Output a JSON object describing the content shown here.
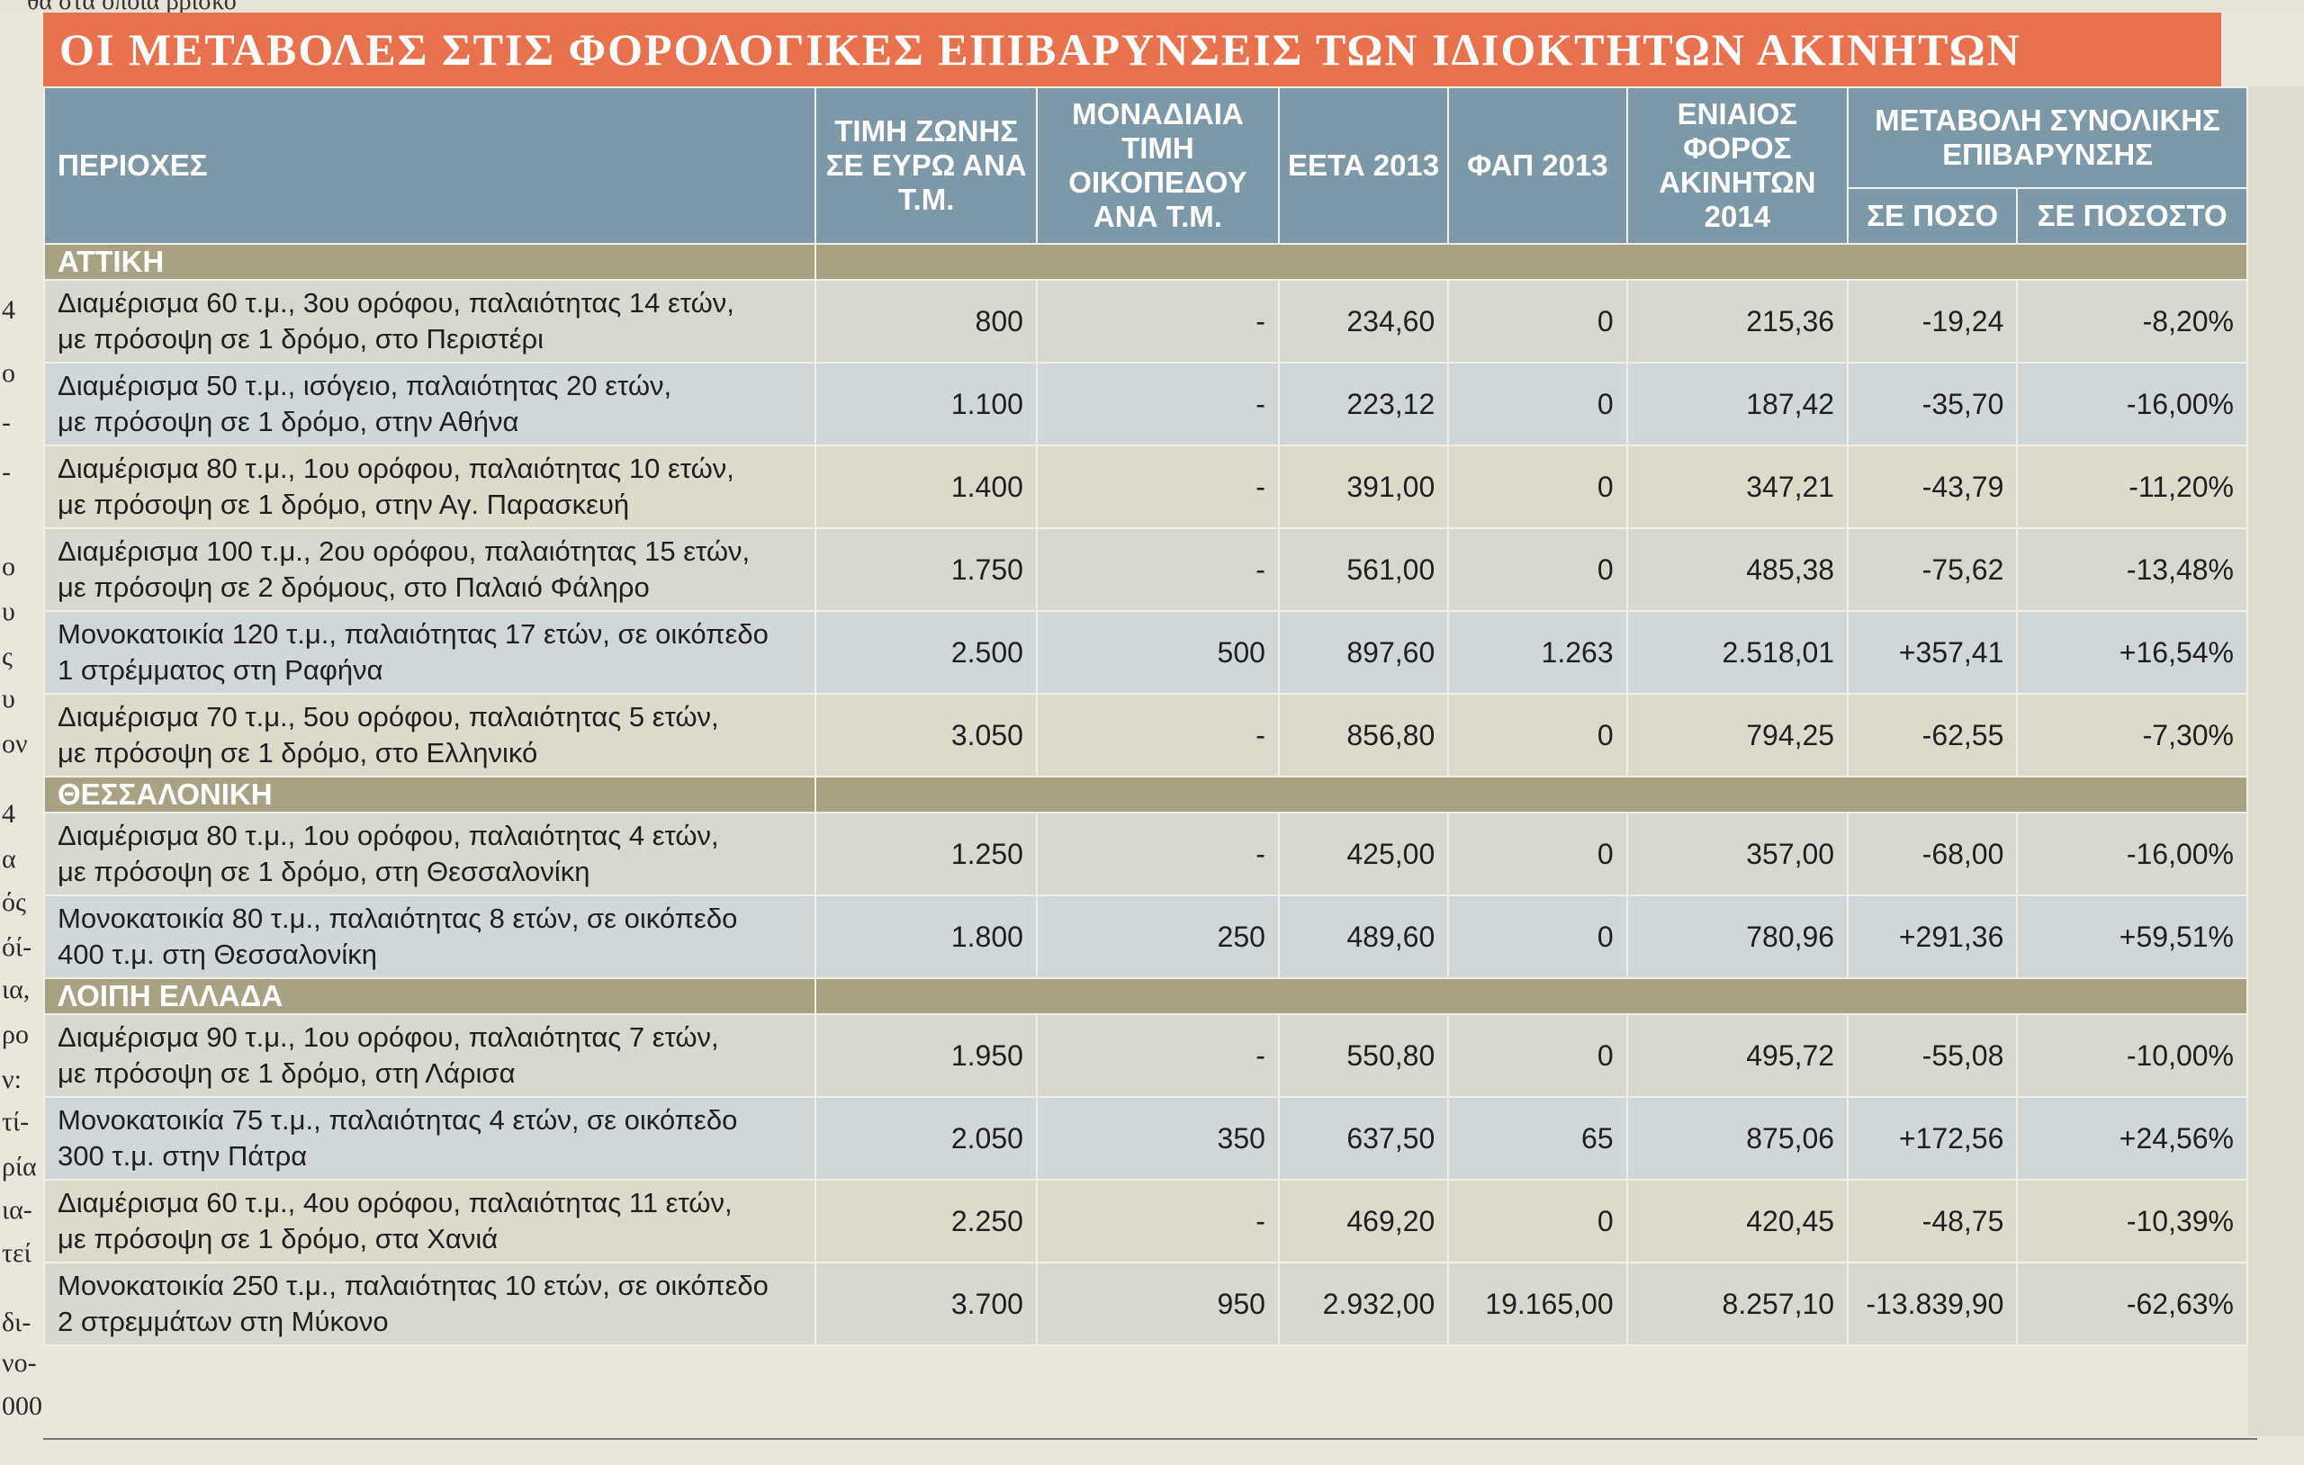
{
  "top_text": "θα στα οποία βρίσκο",
  "left_column_fragments": [
    "4",
    "ο",
    "-",
    "-",
    "ο",
    "υ",
    "ς",
    "υ",
    "ον",
    "4",
    "α",
    "ός",
    "όί-",
    "ια,",
    "ρο",
    "ν:",
    "τί-",
    "ρία",
    "ια-",
    "τεί",
    "δι-",
    "νο-",
    "000"
  ],
  "title": "ΟΙ ΜΕΤΑΒΟΛΕΣ ΣΤΙΣ ΦΟΡΟΛΟΓΙΚΕΣ ΕΠΙΒΑΡΥΝΣΕΙΣ ΤΩΝ ΙΔΙΟΚΤΗΤΩΝ ΑΚΙΝΗΤΩΝ",
  "columns": {
    "area": "ΠΕΡΙΟΧΕΣ",
    "zone_price": "ΤΙΜΗ ΖΩΝΗΣ ΣΕ ΕΥΡΩ ΑΝΑ Τ.Μ.",
    "unit_price": "ΜΟΝΑΔΙΑΙΑ ΤΙΜΗ ΟΙΚΟΠΕΔΟΥ ΑΝΑ Τ.Μ.",
    "eeta": "ΕΕΤΑ 2013",
    "fap": "ΦΑΠ 2013",
    "enfia": "ΕΝΙΑΙΟΣ ΦΟΡΟΣ ΑΚΙΝΗΤΩΝ 2014",
    "change_group": "ΜΕΤΑΒΟΛΗ ΣΥΝΟΛΙΚΗΣ ΕΠΙΒΑΡΥΝΣΗΣ",
    "change_amount": "ΣΕ ΠΟΣΟ",
    "change_percent": "ΣΕ ΠΟΣΟΣΤΟ"
  },
  "sections": [
    {
      "name": "ΑΤΤΙΚΗ",
      "rows": [
        {
          "desc1": "Διαμέρισμα 60 τ.μ., 3ου ορόφου, παλαιότητας 14 ετών,",
          "desc2": "με πρόσοψη σε 1 δρόμο, στο Περιστέρι",
          "zone": "800",
          "unit": "-",
          "eeta": "234,60",
          "fap": "0",
          "enfia": "215,36",
          "amount": "-19,24",
          "percent": "-8,20%"
        },
        {
          "desc1": "Διαμέρισμα 50 τ.μ., ισόγειο, παλαιότητας 20 ετών,",
          "desc2": "με πρόσοψη σε 1 δρόμο, στην Αθήνα",
          "zone": "1.100",
          "unit": "-",
          "eeta": "223,12",
          "fap": "0",
          "enfia": "187,42",
          "amount": "-35,70",
          "percent": "-16,00%"
        },
        {
          "desc1": "Διαμέρισμα 80 τ.μ., 1ου ορόφου, παλαιότητας 10 ετών,",
          "desc2": "με πρόσοψη σε 1 δρόμο, στην Αγ. Παρασκευή",
          "zone": "1.400",
          "unit": "-",
          "eeta": "391,00",
          "fap": "0",
          "enfia": "347,21",
          "amount": "-43,79",
          "percent": "-11,20%"
        },
        {
          "desc1": "Διαμέρισμα 100 τ.μ., 2ου ορόφου, παλαιότητας 15 ετών,",
          "desc2": "με πρόσοψη σε 2 δρόμους, στο Παλαιό Φάληρο",
          "zone": "1.750",
          "unit": "-",
          "eeta": "561,00",
          "fap": "0",
          "enfia": "485,38",
          "amount": "-75,62",
          "percent": "-13,48%"
        },
        {
          "desc1": "Μονοκατοικία 120 τ.μ., παλαιότητας 17 ετών, σε οικόπεδο",
          "desc2": "1 στρέμματος στη Ραφήνα",
          "zone": "2.500",
          "unit": "500",
          "eeta": "897,60",
          "fap": "1.263",
          "enfia": "2.518,01",
          "amount": "+357,41",
          "percent": "+16,54%"
        },
        {
          "desc1": "Διαμέρισμα 70 τ.μ., 5ου ορόφου, παλαιότητας 5 ετών,",
          "desc2": "με πρόσοψη σε 1 δρόμο, στο Ελληνικό",
          "zone": "3.050",
          "unit": "-",
          "eeta": "856,80",
          "fap": "0",
          "enfia": "794,25",
          "amount": "-62,55",
          "percent": "-7,30%"
        }
      ]
    },
    {
      "name": "ΘΕΣΣΑΛΟΝΙΚΗ",
      "rows": [
        {
          "desc1": "Διαμέρισμα 80 τ.μ., 1ου ορόφου, παλαιότητας 4 ετών,",
          "desc2": "με πρόσοψη σε 1 δρόμο, στη Θεσσαλονίκη",
          "zone": "1.250",
          "unit": "-",
          "eeta": "425,00",
          "fap": "0",
          "enfia": "357,00",
          "amount": "-68,00",
          "percent": "-16,00%"
        },
        {
          "desc1": "Μονοκατοικία 80 τ.μ., παλαιότητας 8 ετών, σε οικόπεδο",
          "desc2": "400 τ.μ. στη Θεσσαλονίκη",
          "zone": "1.800",
          "unit": "250",
          "eeta": "489,60",
          "fap": "0",
          "enfia": "780,96",
          "amount": "+291,36",
          "percent": "+59,51%"
        }
      ]
    },
    {
      "name": "ΛΟΙΠΗ ΕΛΛΑΔΑ",
      "rows": [
        {
          "desc1": "Διαμέρισμα 90 τ.μ., 1ου ορόφου, παλαιότητας 7 ετών,",
          "desc2": "με πρόσοψη σε 1 δρόμο, στη Λάρισα",
          "zone": "1.950",
          "unit": "-",
          "eeta": "550,80",
          "fap": "0",
          "enfia": "495,72",
          "amount": "-55,08",
          "percent": "-10,00%"
        },
        {
          "desc1": "Μονοκατοικία 75 τ.μ., παλαιότητας 4 ετών, σε οικόπεδο",
          "desc2": "300 τ.μ. στην Πάτρα",
          "zone": "2.050",
          "unit": "350",
          "eeta": "637,50",
          "fap": "65",
          "enfia": "875,06",
          "amount": "+172,56",
          "percent": "+24,56%"
        },
        {
          "desc1": "Διαμέρισμα 60 τ.μ., 4ου ορόφου, παλαιότητας 11 ετών,",
          "desc2": "με πρόσοψη σε 1 δρόμο, στα Χανιά",
          "zone": "2.250",
          "unit": "-",
          "eeta": "469,20",
          "fap": "0",
          "enfia": "420,45",
          "amount": "-48,75",
          "percent": "-10,39%"
        },
        {
          "desc1": "Μονοκατοικία 250 τ.μ., παλαιότητας 10 ετών, σε οικόπεδο",
          "desc2": "2 στρεμμάτων στη Μύκονο",
          "zone": "3.700",
          "unit": "950",
          "eeta": "2.932,00",
          "fap": "19.165,00",
          "enfia": "8.257,10",
          "amount": "-13.839,90",
          "percent": "-62,63%"
        }
      ]
    }
  ],
  "colors": {
    "title_bg": "#e8714e",
    "header_bg": "#7d98a6",
    "section_bg": "#a8a184",
    "row_a": "#d9d8cf",
    "row_b": "#cfd7da",
    "row_c": "#dcdacb"
  }
}
